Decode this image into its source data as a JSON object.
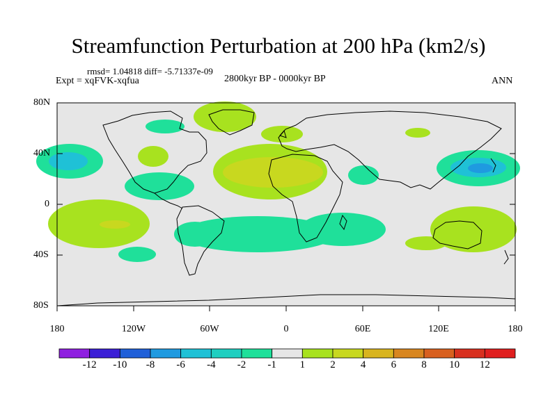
{
  "title": "Streamfunction Perturbation at 200 hPa (km2/s)",
  "stats": "rmsd= 1.04818 diff= -5.71337e-09",
  "experiment": "Expt = xqFVK-xqfua",
  "subtitle": "2800kyr BP - 0000kyr BP",
  "season": "ANN",
  "lat_labels": [
    "80N",
    "40N",
    "0",
    "40S",
    "80S"
  ],
  "lon_labels": [
    "180",
    "120W",
    "60W",
    "0",
    "60E",
    "120E",
    "180"
  ],
  "colorbar": {
    "labels": [
      "-12",
      "-10",
      "-8",
      "-6",
      "-4",
      "-2",
      "-1",
      "1",
      "2",
      "4",
      "6",
      "8",
      "10",
      "12"
    ],
    "colors": [
      "#8f1fe0",
      "#3b1fd6",
      "#1f5fd8",
      "#1f9ae0",
      "#1fc1d6",
      "#1fcfc0",
      "#1fe09a",
      "#e6e6e6",
      "#a8e21f",
      "#c8d81f",
      "#d8b41f",
      "#d8861f",
      "#d8601f",
      "#d8301f",
      "#e01f1f"
    ]
  },
  "colors": {
    "background": "#e6e6e6",
    "neg_light": "#1fe09a",
    "neg_medium": "#1fc1d6",
    "neg_strong": "#1f9ae0",
    "pos_light": "#a8e21f",
    "pos_medium": "#c8d81f"
  }
}
